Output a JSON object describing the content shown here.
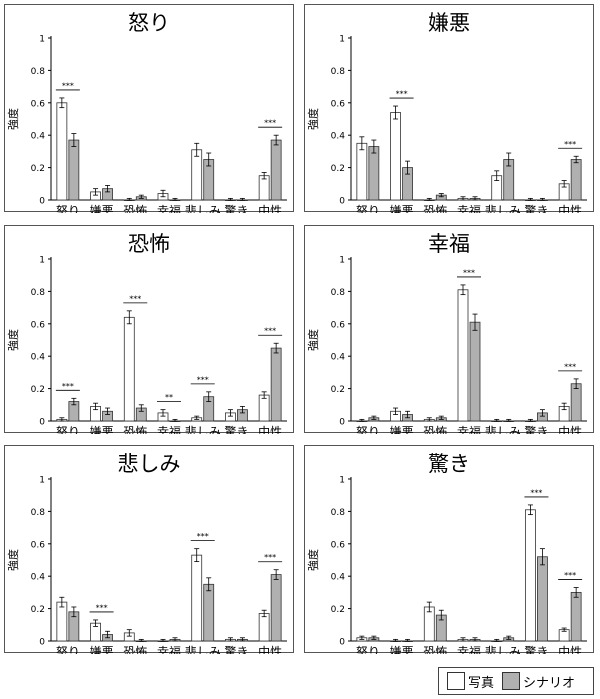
{
  "categories": [
    "怒り",
    "嫌悪",
    "恐怖",
    "幸福",
    "悲しみ",
    "驚き",
    "中性"
  ],
  "ylabel": "強度",
  "legend": {
    "s1": "写真",
    "s2": "シナリオ"
  },
  "colors": {
    "s1": "#ffffff",
    "s2": "#b0b0b0",
    "outline": "#333333"
  },
  "chart_data": [
    {
      "type": "bar",
      "title": "怒り",
      "categories": [
        "怒り",
        "嫌悪",
        "恐怖",
        "幸福",
        "悲しみ",
        "驚き",
        "中性"
      ],
      "ylabel": "強度",
      "ylim": [
        0,
        1
      ],
      "yticks": [
        0,
        0.2,
        0.4,
        0.6,
        0.8,
        1
      ],
      "series": [
        {
          "name": "写真",
          "values": [
            0.6,
            0.05,
            0.0,
            0.04,
            0.31,
            0.0,
            0.15
          ],
          "errors": [
            0.03,
            0.02,
            0.01,
            0.02,
            0.04,
            0.01,
            0.02
          ]
        },
        {
          "name": "シナリオ",
          "values": [
            0.37,
            0.07,
            0.02,
            0.0,
            0.25,
            0.0,
            0.37
          ],
          "errors": [
            0.04,
            0.02,
            0.01,
            0.01,
            0.04,
            0.01,
            0.03
          ]
        }
      ],
      "sig": [
        {
          "cat": 0,
          "label": "***"
        },
        {
          "cat": 6,
          "label": "***"
        }
      ]
    },
    {
      "type": "bar",
      "title": "嫌悪",
      "categories": [
        "怒り",
        "嫌悪",
        "恐怖",
        "幸福",
        "悲しみ",
        "驚き",
        "中性"
      ],
      "ylabel": "強度",
      "ylim": [
        0,
        1
      ],
      "yticks": [
        0,
        0.2,
        0.4,
        0.6,
        0.8,
        1
      ],
      "series": [
        {
          "name": "写真",
          "values": [
            0.35,
            0.54,
            0.0,
            0.01,
            0.15,
            0.0,
            0.1
          ],
          "errors": [
            0.04,
            0.04,
            0.01,
            0.01,
            0.03,
            0.01,
            0.02
          ]
        },
        {
          "name": "シナリオ",
          "values": [
            0.33,
            0.2,
            0.03,
            0.01,
            0.25,
            0.0,
            0.25
          ],
          "errors": [
            0.04,
            0.04,
            0.01,
            0.01,
            0.04,
            0.01,
            0.02
          ]
        }
      ],
      "sig": [
        {
          "cat": 1,
          "label": "***"
        },
        {
          "cat": 6,
          "label": "***"
        }
      ]
    },
    {
      "type": "bar",
      "title": "恐怖",
      "categories": [
        "怒り",
        "嫌悪",
        "恐怖",
        "幸福",
        "悲しみ",
        "驚き",
        "中性"
      ],
      "ylabel": "強度",
      "ylim": [
        0,
        1
      ],
      "yticks": [
        0,
        0.2,
        0.4,
        0.6,
        0.8,
        1
      ],
      "series": [
        {
          "name": "写真",
          "values": [
            0.01,
            0.09,
            0.64,
            0.05,
            0.02,
            0.05,
            0.16
          ],
          "errors": [
            0.01,
            0.02,
            0.04,
            0.02,
            0.01,
            0.02,
            0.02
          ]
        },
        {
          "name": "シナリオ",
          "values": [
            0.12,
            0.06,
            0.08,
            0.0,
            0.15,
            0.07,
            0.45
          ],
          "errors": [
            0.02,
            0.02,
            0.02,
            0.01,
            0.03,
            0.02,
            0.03
          ]
        }
      ],
      "sig": [
        {
          "cat": 0,
          "label": "***"
        },
        {
          "cat": 2,
          "label": "***"
        },
        {
          "cat": 3,
          "label": "**"
        },
        {
          "cat": 4,
          "label": "***"
        },
        {
          "cat": 6,
          "label": "***"
        }
      ]
    },
    {
      "type": "bar",
      "title": "幸福",
      "categories": [
        "怒り",
        "嫌悪",
        "恐怖",
        "幸福",
        "悲しみ",
        "驚き",
        "中性"
      ],
      "ylabel": "強度",
      "ylim": [
        0,
        1
      ],
      "yticks": [
        0,
        0.2,
        0.4,
        0.6,
        0.8,
        1
      ],
      "series": [
        {
          "name": "写真",
          "values": [
            0.0,
            0.06,
            0.01,
            0.81,
            0.0,
            0.0,
            0.09
          ],
          "errors": [
            0.01,
            0.02,
            0.01,
            0.03,
            0.01,
            0.01,
            0.02
          ]
        },
        {
          "name": "シナリオ",
          "values": [
            0.02,
            0.04,
            0.02,
            0.61,
            0.0,
            0.05,
            0.23
          ],
          "errors": [
            0.01,
            0.02,
            0.01,
            0.05,
            0.01,
            0.02,
            0.03
          ]
        }
      ],
      "sig": [
        {
          "cat": 3,
          "label": "***"
        },
        {
          "cat": 6,
          "label": "***"
        }
      ]
    },
    {
      "type": "bar",
      "title": "悲しみ",
      "categories": [
        "怒り",
        "嫌悪",
        "恐怖",
        "幸福",
        "悲しみ",
        "驚き",
        "中性"
      ],
      "ylabel": "強度",
      "ylim": [
        0,
        1
      ],
      "yticks": [
        0,
        0.2,
        0.4,
        0.6,
        0.8,
        1
      ],
      "series": [
        {
          "name": "写真",
          "values": [
            0.24,
            0.11,
            0.05,
            0.0,
            0.53,
            0.01,
            0.17
          ],
          "errors": [
            0.03,
            0.02,
            0.02,
            0.01,
            0.04,
            0.01,
            0.02
          ]
        },
        {
          "name": "シナリオ",
          "values": [
            0.18,
            0.04,
            0.0,
            0.01,
            0.35,
            0.01,
            0.41
          ],
          "errors": [
            0.03,
            0.02,
            0.01,
            0.01,
            0.04,
            0.01,
            0.03
          ]
        }
      ],
      "sig": [
        {
          "cat": 1,
          "label": "***"
        },
        {
          "cat": 4,
          "label": "***"
        },
        {
          "cat": 6,
          "label": "***"
        }
      ]
    },
    {
      "type": "bar",
      "title": "驚き",
      "categories": [
        "怒り",
        "嫌悪",
        "恐怖",
        "幸福",
        "悲しみ",
        "驚き",
        "中性"
      ],
      "ylabel": "強度",
      "ylim": [
        0,
        1
      ],
      "yticks": [
        0,
        0.2,
        0.4,
        0.6,
        0.8,
        1
      ],
      "series": [
        {
          "name": "写真",
          "values": [
            0.02,
            0.0,
            0.21,
            0.01,
            0.0,
            0.81,
            0.07
          ],
          "errors": [
            0.01,
            0.01,
            0.03,
            0.01,
            0.01,
            0.03,
            0.01
          ]
        },
        {
          "name": "シナリオ",
          "values": [
            0.02,
            0.0,
            0.16,
            0.01,
            0.02,
            0.52,
            0.3
          ],
          "errors": [
            0.01,
            0.01,
            0.03,
            0.01,
            0.01,
            0.05,
            0.03
          ]
        }
      ],
      "sig": [
        {
          "cat": 5,
          "label": "***"
        },
        {
          "cat": 6,
          "label": "***"
        }
      ]
    }
  ]
}
